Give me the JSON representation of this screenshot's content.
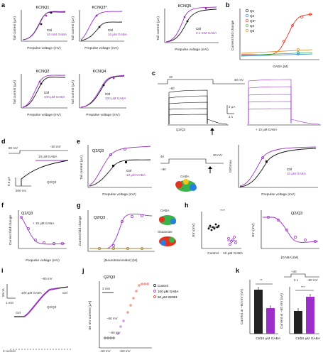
{
  "colors": {
    "ctrl": "#111111",
    "gaba": "#9b30c8",
    "q1": "#1a1a1a",
    "q2": "#2a7de1",
    "q3": "#e8321e",
    "q4": "#3ab34a",
    "q5": "#e38a1c",
    "glutamate": "#a08530"
  },
  "panels": {
    "a": {
      "letter": "a",
      "kcnq1": {
        "title": "KCNQ1",
        "ylabel": "Tail current (μA)",
        "xlabel": "Prepulse voltage (mV)",
        "leg1": "Ctrl",
        "leg2": "10 mM GABA"
      },
      "kcnq3": {
        "title": "KCNQ3*",
        "ylabel": "Tail current (μA)",
        "xlabel": "Prepulse voltage (mV)",
        "leg1": "Ctrl",
        "leg2": "10 μM GABA"
      },
      "kcnq5": {
        "title": "KCNQ5",
        "ylabel": "Tail current (μA)",
        "xlabel": "Prepulse voltage (mV)",
        "leg1": "Ctrl",
        "leg2": "0.1 mM GABA"
      },
      "kcnq2": {
        "title": "KCNQ2",
        "ylabel": "Tail current (μA)",
        "xlabel": "Prepulse voltage (mV)",
        "leg1": "Ctrl",
        "leg2": "100 μM GABA"
      },
      "kcnq4": {
        "title": "KCNQ4",
        "ylabel": "Tail current (μA)",
        "xlabel": "Prepulse voltage (mV)",
        "leg1": "Ctrl",
        "leg2": "100 μM GABA"
      }
    },
    "b": {
      "letter": "b",
      "ylabel": "Current fold change",
      "xlabel": "GABA (M)",
      "legend": [
        "Q1",
        "Q2",
        "Q3*",
        "Q4",
        "Q5"
      ]
    },
    "c": {
      "letter": "c",
      "v1": "40",
      "v2": "30 mV",
      "v3": "−80",
      "scale_y": "2 μA",
      "scale_x": "1 s",
      "label": "Q2/Q3",
      "gaba": "+ 10 μM GABA"
    },
    "d": {
      "letter": "d",
      "v1": "80 mV",
      "v2": "−30 mV",
      "label": "Q2/Q3",
      "gaba": "10 μM GABA",
      "scale_y": "0.5 μA",
      "scale_x": "500 ms"
    },
    "e": {
      "letter": "e",
      "title": "Q2/Q3",
      "ylabel": "Tail current (μA)",
      "xlabel": "Prepulse voltage (mV)",
      "leg1": "Ctrl",
      "leg2": "10 μM GABA",
      "xlabel2": "Prepulse voltage (mV)",
      "ylabel2": "G/Gmax",
      "protocol_v1": "40",
      "protocol_v2": "30 mV",
      "protocol_v3": "−80",
      "gaba_model": "GABA"
    },
    "f": {
      "letter": "f",
      "title": "Q2/Q3",
      "gaba": "+ 10 μM GABA",
      "ylabel": "Current fold change",
      "xlabel": "Prepulse voltage (mV)"
    },
    "g": {
      "letter": "g",
      "title": "Q2/Q3",
      "ylabel": "Current fold change",
      "xlabel": "[Neurotransmitter] (M)",
      "gaba": "GABA",
      "glutamate": "Glutamate"
    },
    "h": {
      "letter": "h",
      "ylabel": "Em (mV)",
      "cat1": "Control",
      "cat2": "10 μM GABA",
      "stars": "****",
      "title2": "Q2/Q3",
      "ylabel2": "Em (mV)",
      "xlabel2": "[GABA] (M)"
    },
    "i": {
      "letter": "i",
      "v": "−60 mV",
      "scale_y": "50 nA",
      "scale_x": "1 min",
      "ctrl": "Ctrl",
      "ctrl2": "Ctrl",
      "gaba": "100 μM GABA",
      "label": "Q2/Q3",
      "zero": "0 current"
    },
    "j": {
      "letter": "j",
      "title": "Q2/Q3",
      "ylabel": "60 mV current (μA)",
      "scale": "3 min",
      "v1": "−60 mV",
      "v2": "−60 mV",
      "v3": "+60 mV",
      "v4": "−60 mV",
      "leg1": "Control",
      "leg2": "100 μM GABA",
      "leg3": "50 μM XE991"
    },
    "k": {
      "letter": "k",
      "stars1": "**",
      "stars2": "***",
      "ylabel1": "Current at −60 mV (nA)",
      "ylabel2": "Current at −60 mV (nA)",
      "prot_v1": "+40",
      "prot_v2": "−80 mV",
      "prot_s": "5 s",
      "cat1": "Ctrl",
      "cat2": "10 μM GABA"
    }
  }
}
